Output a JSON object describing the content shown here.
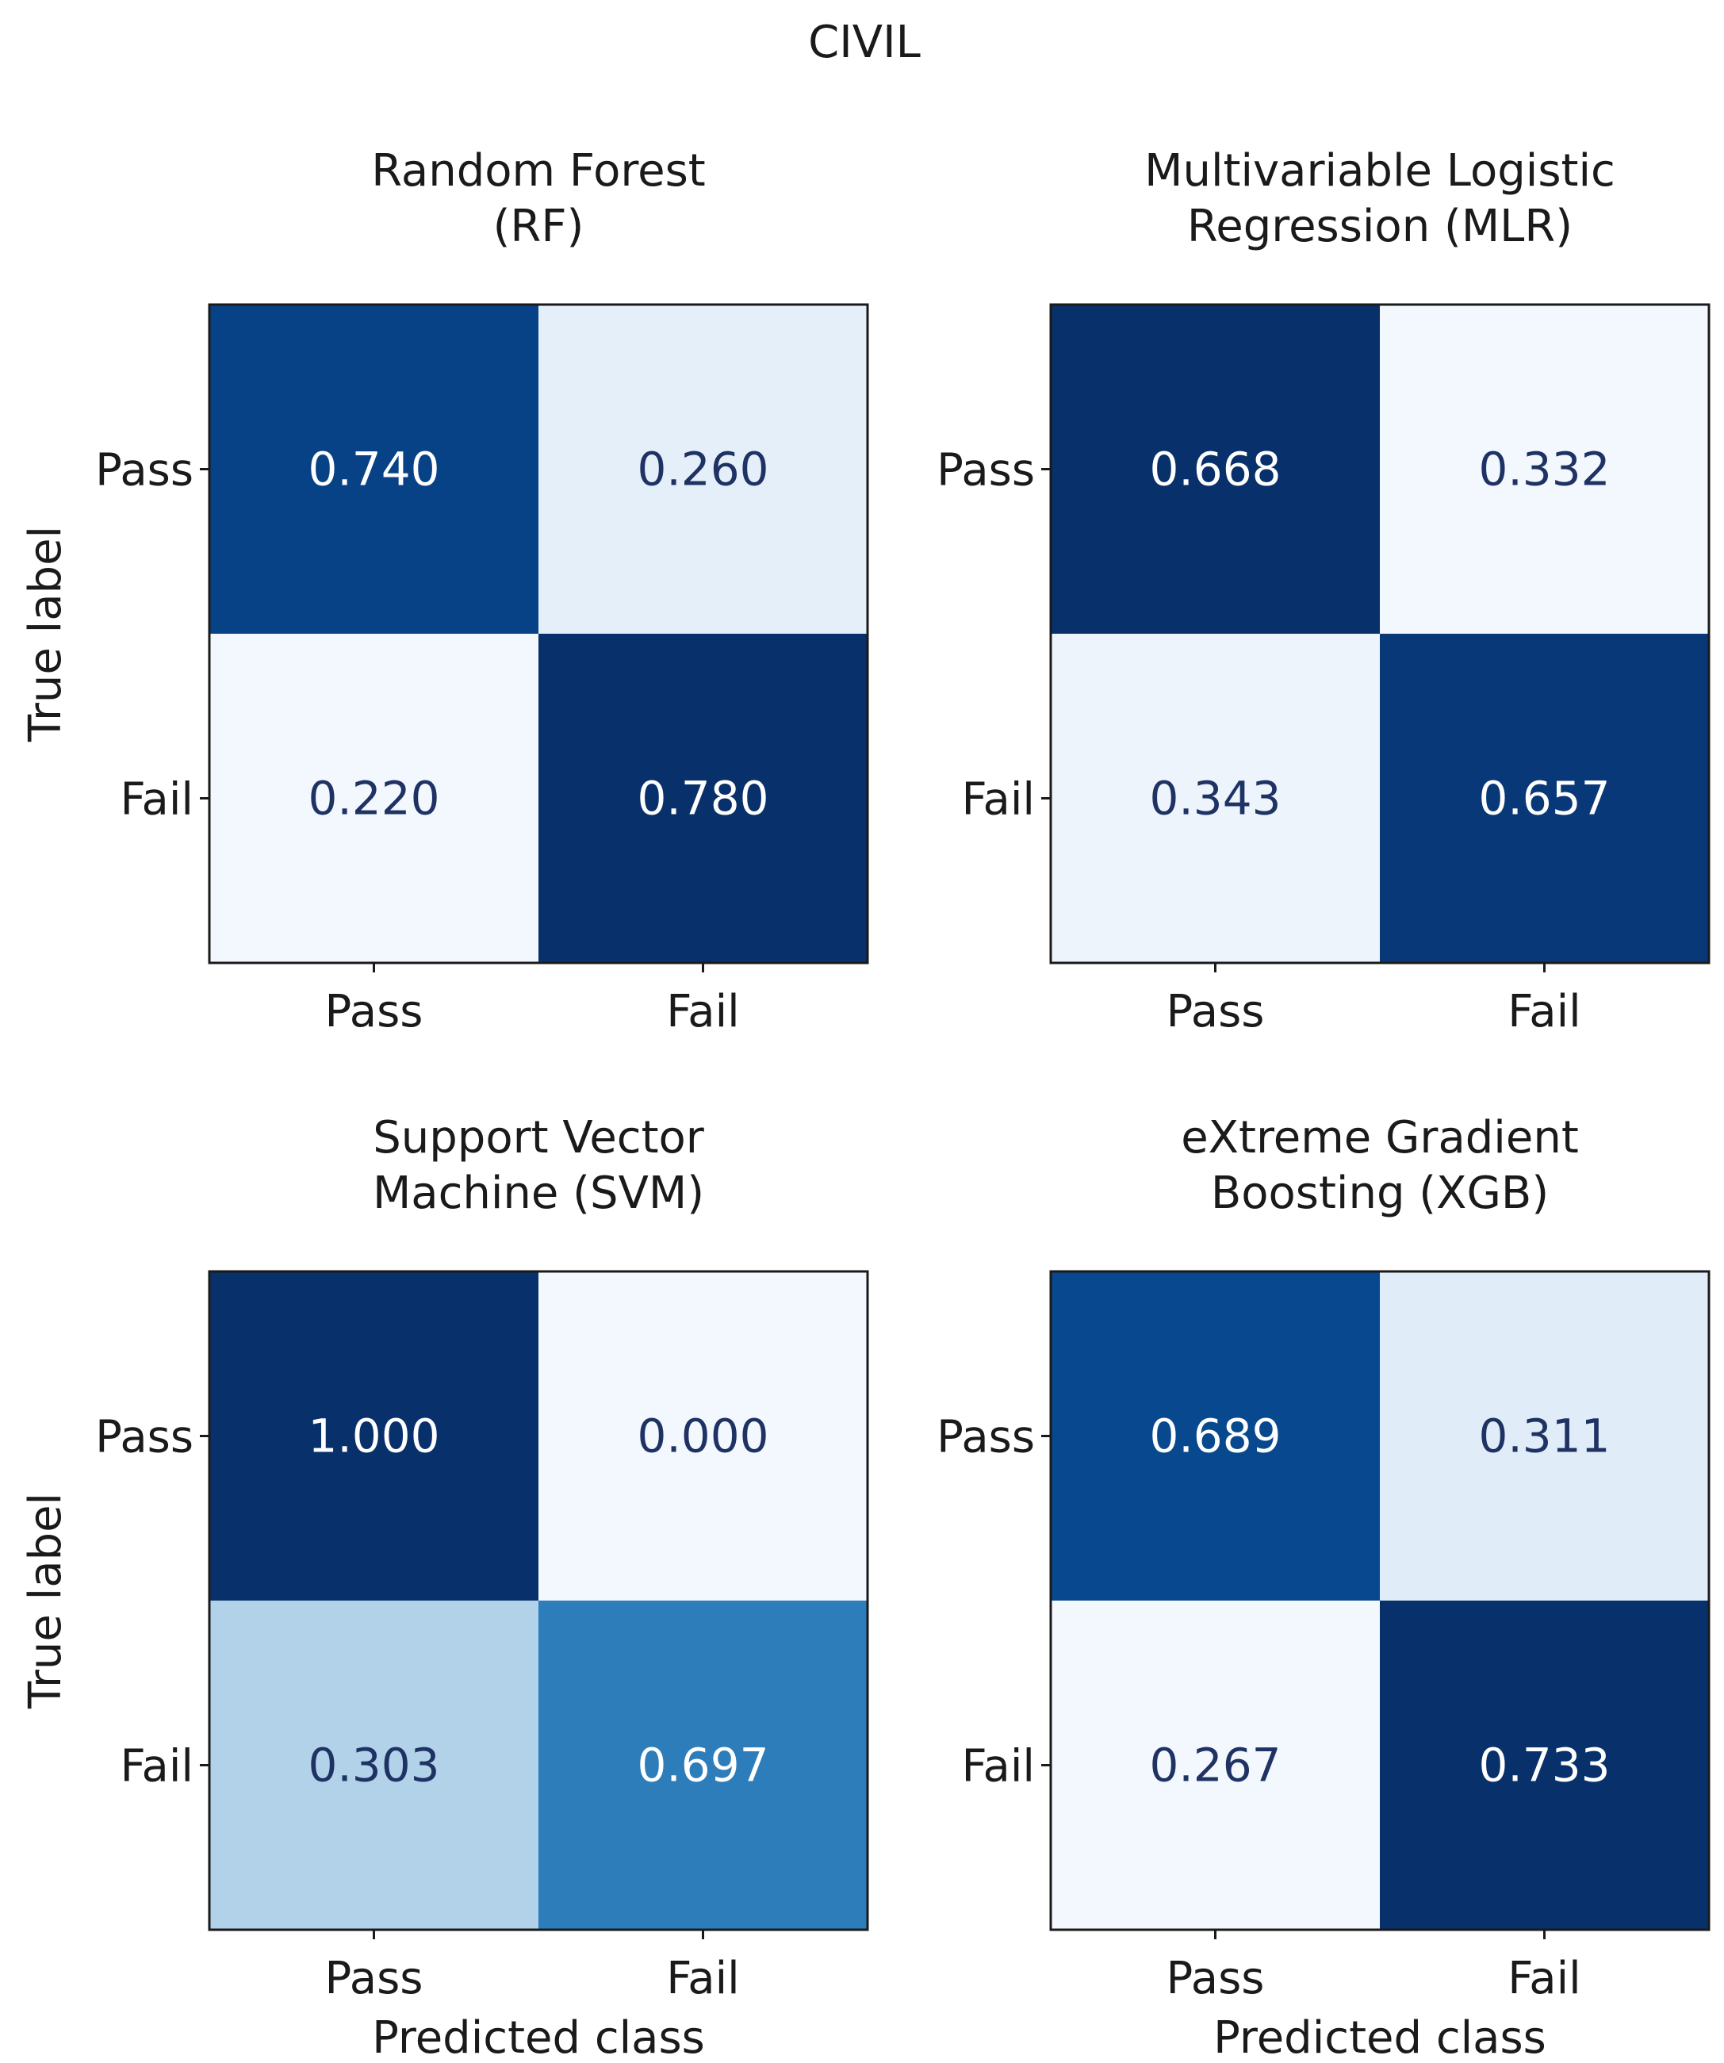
{
  "figure": {
    "title": "CIVIL"
  },
  "chart_data": [
    {
      "type": "heatmap",
      "title_lines": [
        "Random Forest",
        "(RF)"
      ],
      "row_labels": [
        "Pass",
        "Fail"
      ],
      "col_labels": [
        "Pass",
        "Fail"
      ],
      "values": [
        [
          0.74,
          0.26
        ],
        [
          0.22,
          0.78
        ]
      ],
      "cell_text": [
        [
          "0.740",
          "0.260"
        ],
        [
          "0.220",
          "0.780"
        ]
      ],
      "ylabel": "True label",
      "xlabel": "",
      "colormap": "Blues"
    },
    {
      "type": "heatmap",
      "title_lines": [
        "Multivariable Logistic",
        "Regression (MLR)"
      ],
      "row_labels": [
        "Pass",
        "Fail"
      ],
      "col_labels": [
        "Pass",
        "Fail"
      ],
      "values": [
        [
          0.668,
          0.332
        ],
        [
          0.343,
          0.657
        ]
      ],
      "cell_text": [
        [
          "0.668",
          "0.332"
        ],
        [
          "0.343",
          "0.657"
        ]
      ],
      "ylabel": "",
      "xlabel": "",
      "colormap": "Blues"
    },
    {
      "type": "heatmap",
      "title_lines": [
        "Support Vector",
        "Machine (SVM)"
      ],
      "row_labels": [
        "Pass",
        "Fail"
      ],
      "col_labels": [
        "Pass",
        "Fail"
      ],
      "values": [
        [
          1.0,
          0.0
        ],
        [
          0.303,
          0.697
        ]
      ],
      "cell_text": [
        [
          "1.000",
          "0.000"
        ],
        [
          "0.303",
          "0.697"
        ]
      ],
      "ylabel": "True label",
      "xlabel": "Predicted class",
      "colormap": "Blues"
    },
    {
      "type": "heatmap",
      "title_lines": [
        "eXtreme Gradient",
        "Boosting (XGB)"
      ],
      "row_labels": [
        "Pass",
        "Fail"
      ],
      "col_labels": [
        "Pass",
        "Fail"
      ],
      "values": [
        [
          0.689,
          0.311
        ],
        [
          0.267,
          0.733
        ]
      ],
      "cell_text": [
        [
          "0.689",
          "0.311"
        ],
        [
          "0.267",
          "0.733"
        ]
      ],
      "ylabel": "",
      "xlabel": "Predicted class",
      "colormap": "Blues"
    }
  ]
}
